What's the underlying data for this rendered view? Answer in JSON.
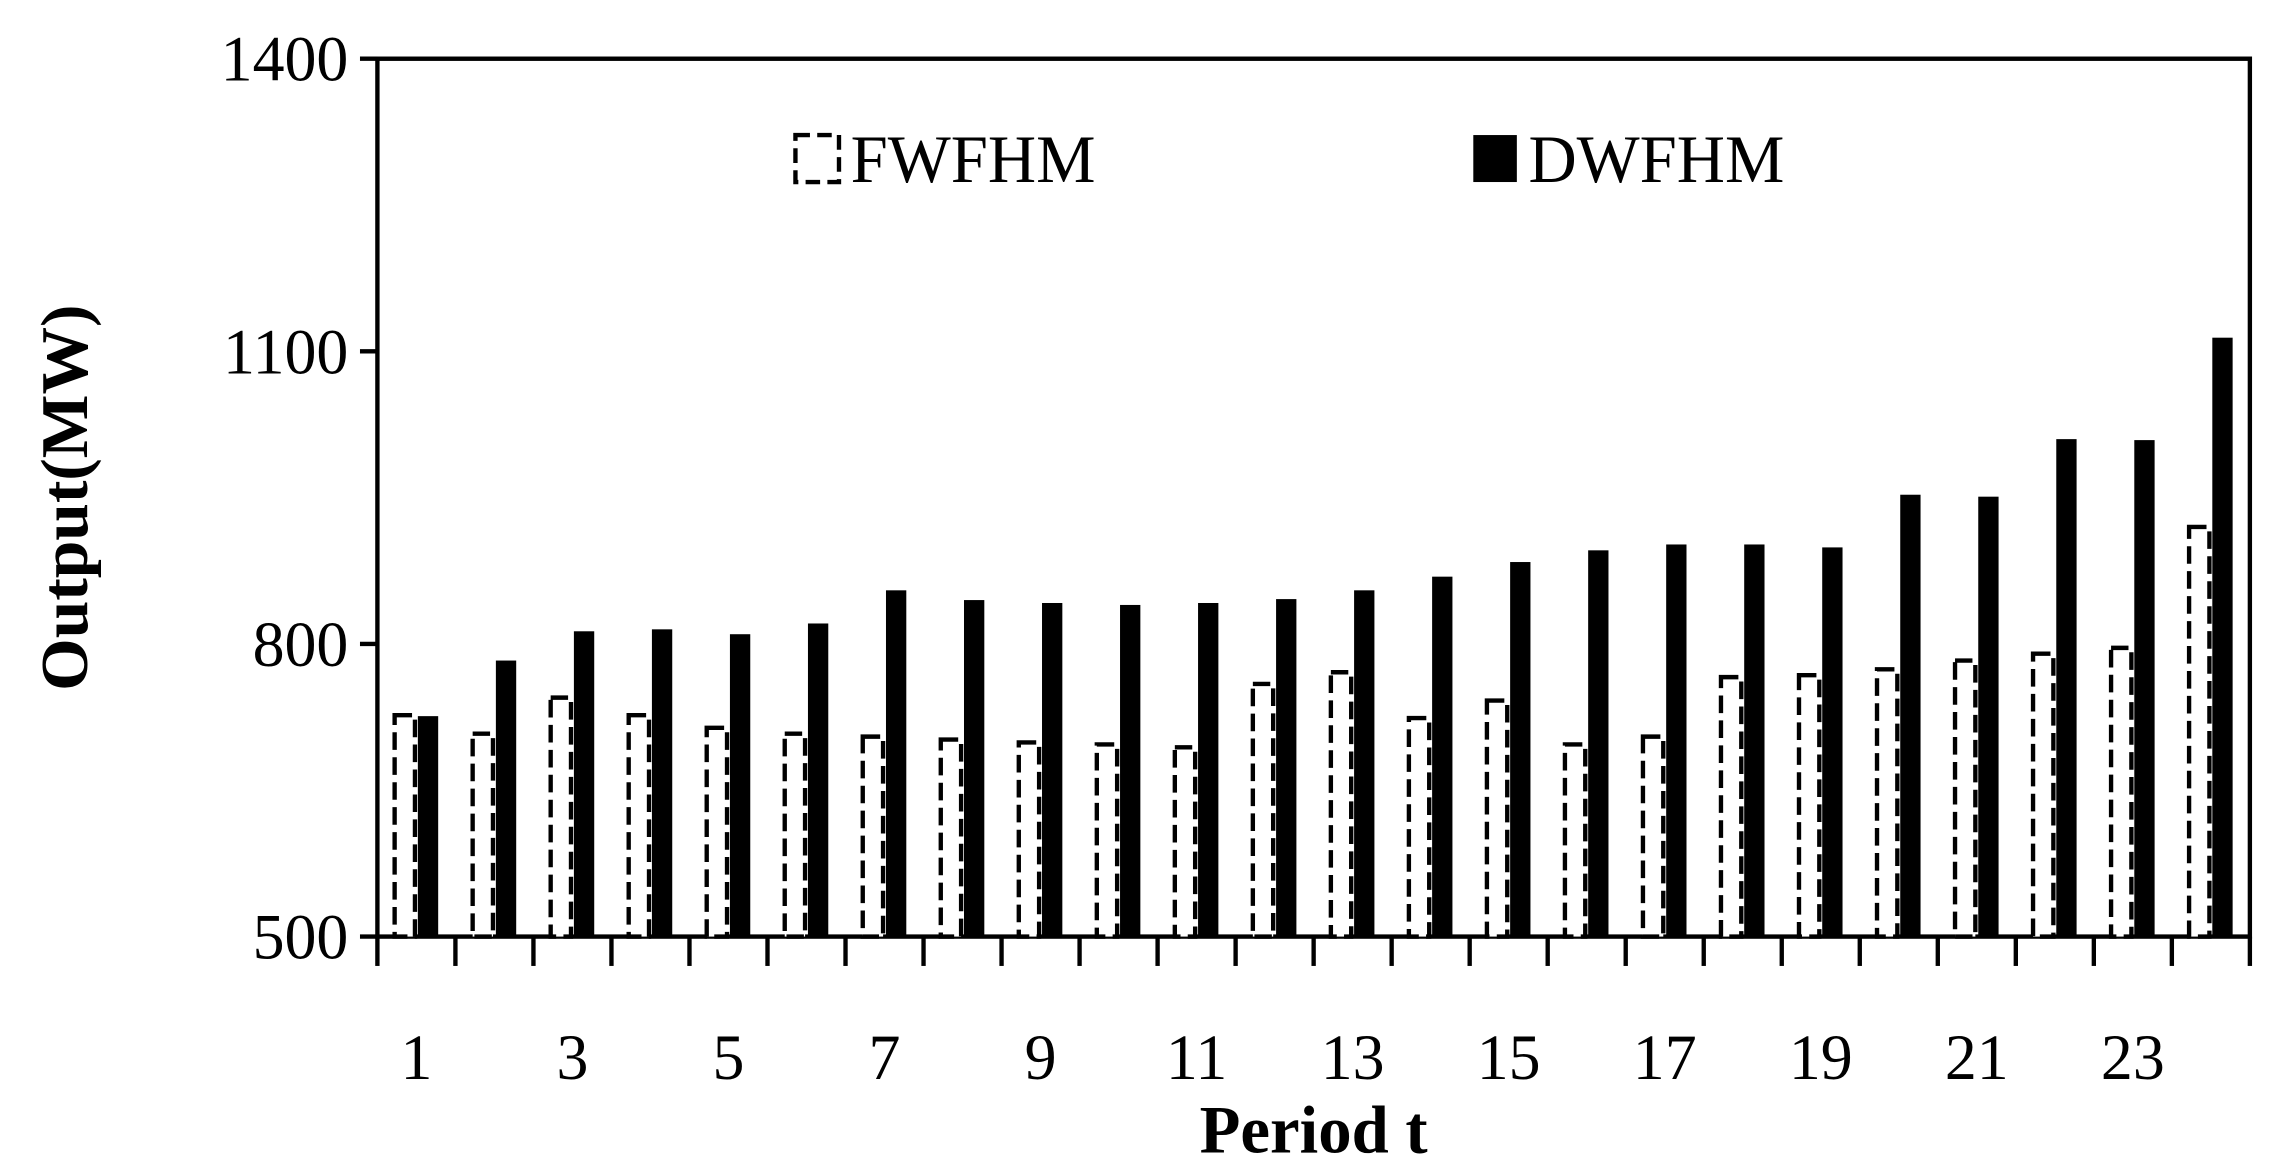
{
  "chart_data": {
    "type": "bar",
    "x_label": "Period t",
    "y_label": "Output(MW)",
    "categories": [
      "1",
      null,
      "3",
      null,
      "5",
      null,
      "7",
      null,
      "9",
      null,
      "11",
      null,
      "13",
      null,
      "15",
      null,
      "17",
      null,
      "19",
      null,
      "21",
      null,
      "23",
      null
    ],
    "series": [
      {
        "name": "FWFHM",
        "color": "#000000",
        "style": "dashed",
        "values": [
          727,
          708,
          745,
          727,
          714,
          708,
          705,
          702,
          699,
          697,
          694,
          759,
          771,
          724,
          742,
          697,
          705,
          766,
          768,
          774,
          783,
          790,
          796,
          920
        ]
      },
      {
        "name": "DWFHM",
        "color": "#000000",
        "style": "solid",
        "values": [
          726,
          783,
          813,
          815,
          810,
          821,
          855,
          845,
          842,
          840,
          842,
          846,
          855,
          869,
          884,
          896,
          902,
          902,
          899,
          953,
          951,
          1010,
          1009,
          1114
        ]
      }
    ],
    "ylim": [
      500,
      1400
    ],
    "yticks": [
      500,
      800,
      1100,
      1400
    ],
    "legend": "top"
  }
}
